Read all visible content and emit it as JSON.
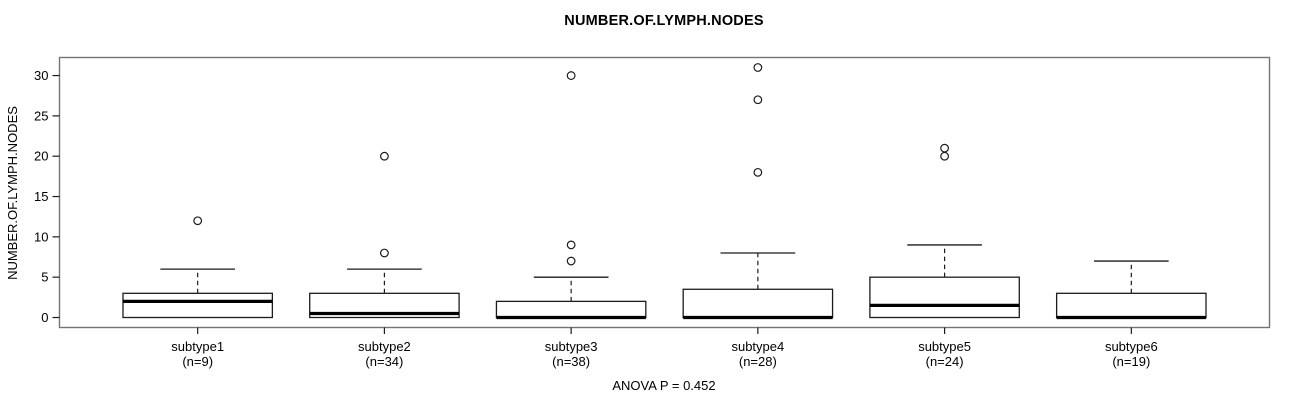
{
  "chart_data": {
    "type": "boxplot",
    "title": "NUMBER.OF.LYMPH.NODES",
    "ylabel": "NUMBER.OF.LYMPH.NODES",
    "footer": "ANOVA P = 0.452",
    "ylim": [
      0,
      31
    ],
    "yticks": [
      0,
      5,
      10,
      15,
      20,
      25,
      30
    ],
    "grid": false,
    "legend": null,
    "groups": [
      {
        "label": "subtype1",
        "sublabel": "(n=9)",
        "n": 9,
        "q1": 0,
        "median": 2,
        "q3": 3,
        "whisker_low": 0,
        "whisker_high": 6,
        "outliers": [
          12
        ]
      },
      {
        "label": "subtype2",
        "sublabel": "(n=34)",
        "n": 34,
        "q1": 0,
        "median": 0.5,
        "q3": 3,
        "whisker_low": 0,
        "whisker_high": 6,
        "outliers": [
          8,
          20
        ]
      },
      {
        "label": "subtype3",
        "sublabel": "(n=38)",
        "n": 38,
        "q1": 0,
        "median": 0,
        "q3": 2,
        "whisker_low": 0,
        "whisker_high": 5,
        "outliers": [
          7,
          9,
          30
        ]
      },
      {
        "label": "subtype4",
        "sublabel": "(n=28)",
        "n": 28,
        "q1": 0,
        "median": 0,
        "q3": 3.5,
        "whisker_low": 0,
        "whisker_high": 8,
        "outliers": [
          18,
          27,
          31
        ]
      },
      {
        "label": "subtype5",
        "sublabel": "(n=24)",
        "n": 24,
        "q1": 0,
        "median": 1.5,
        "q3": 5,
        "whisker_low": 0,
        "whisker_high": 9,
        "outliers": [
          20,
          21
        ]
      },
      {
        "label": "subtype6",
        "sublabel": "(n=19)",
        "n": 19,
        "q1": 0,
        "median": 0,
        "q3": 3,
        "whisker_low": 0,
        "whisker_high": 7,
        "outliers": []
      }
    ],
    "colors": {
      "background": "#ffffff",
      "box_fill": "#ffffff",
      "line": "#1c1c1c",
      "median": "#000000",
      "frame": "#747474",
      "text": "#000000"
    }
  }
}
